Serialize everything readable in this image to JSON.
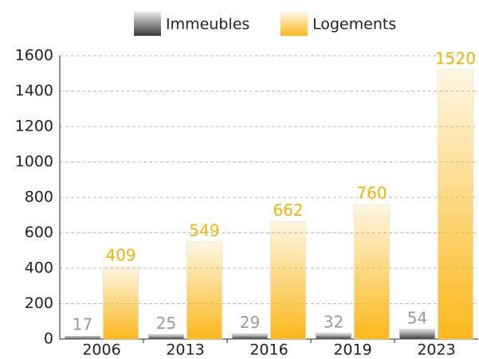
{
  "chart_data": {
    "type": "bar",
    "categories": [
      "2006",
      "2013",
      "2016",
      "2019",
      "2023"
    ],
    "series": [
      {
        "name": "Immeubles",
        "color": "#3a3a3a",
        "values": [
          17,
          25,
          29,
          32,
          54
        ]
      },
      {
        "name": "Logements",
        "color": "#fbb81b",
        "values": [
          409,
          549,
          662,
          760,
          1520
        ]
      }
    ],
    "ylim": [
      0,
      1600
    ],
    "yticks": [
      0,
      200,
      400,
      600,
      800,
      1000,
      1200,
      1400,
      1600
    ],
    "grid": true,
    "legend": "top"
  }
}
